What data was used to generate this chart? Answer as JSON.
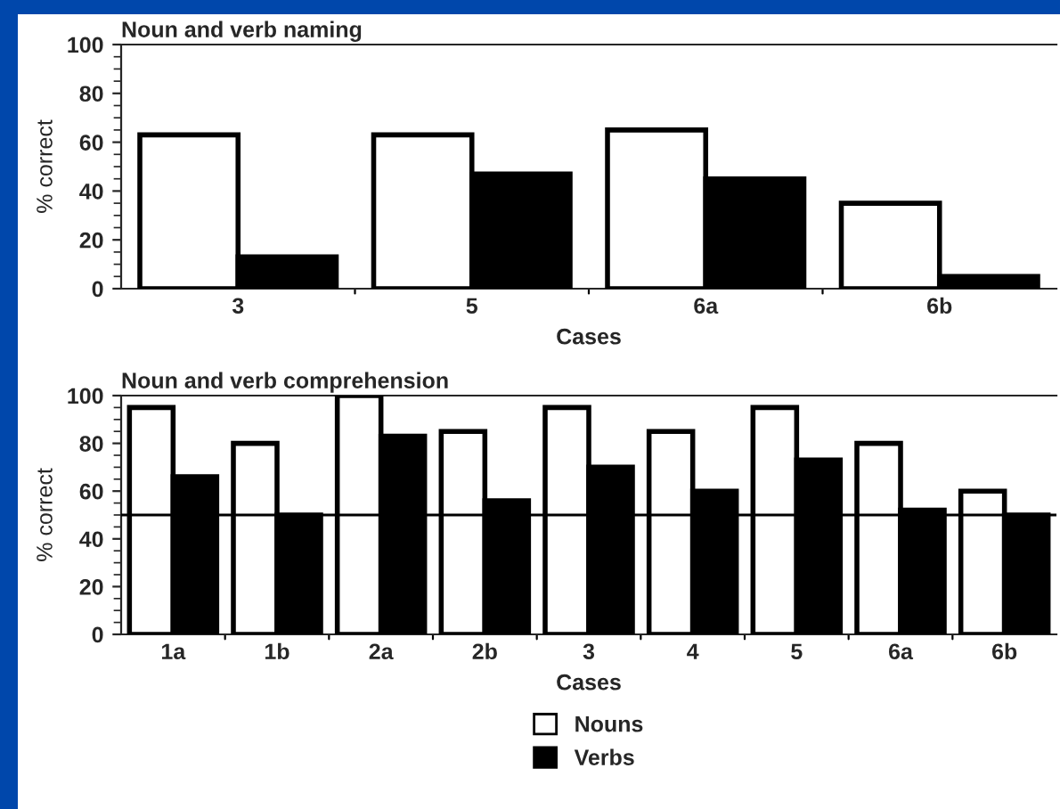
{
  "chart_data": [
    {
      "type": "bar",
      "title": "Noun and verb naming",
      "xlabel": "Cases",
      "ylabel": "% correct",
      "categories": [
        "3",
        "5",
        "6a",
        "6b"
      ],
      "series": [
        {
          "color": "#ffffff",
          "values": [
            63,
            63,
            65,
            35
          ]
        },
        {
          "color": "#000000",
          "values": [
            13,
            47,
            45,
            5
          ]
        }
      ],
      "ylim": [
        0,
        100
      ],
      "yticks": [
        0,
        20,
        40,
        60,
        80,
        100
      ],
      "grid": false
    },
    {
      "type": "bar",
      "title": "Noun and verb comprehension",
      "xlabel": "Cases",
      "ylabel": "% correct",
      "categories": [
        "1a",
        "1b",
        "2a",
        "2b",
        "3",
        "4",
        "5",
        "6a",
        "6b"
      ],
      "series": [
        {
          "name": "Nouns",
          "color": "#ffffff",
          "values": [
            95,
            80,
            100,
            85,
            95,
            85,
            95,
            80,
            60
          ]
        },
        {
          "name": "Verbs",
          "color": "#000000",
          "values": [
            66,
            50,
            83,
            56,
            70,
            60,
            73,
            52,
            50
          ]
        }
      ],
      "ylim": [
        0,
        100
      ],
      "yticks": [
        0,
        20,
        40,
        60,
        80,
        100
      ],
      "grid": false,
      "ref_lines": [
        {
          "axis": "y",
          "value": 50,
          "color": "#000000"
        }
      ],
      "legend": "bottom"
    }
  ]
}
